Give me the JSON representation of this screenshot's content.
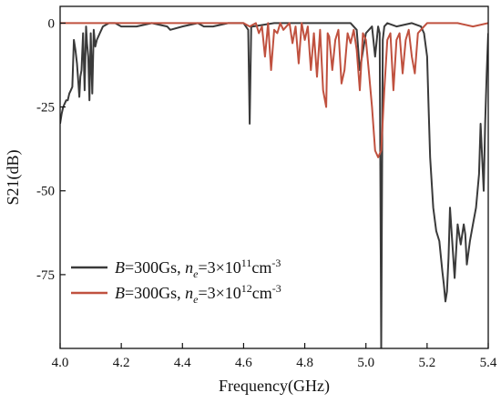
{
  "chart_data": {
    "type": "line",
    "xlabel": "Frequency(GHz)",
    "ylabel": "S21(dB)",
    "xlim": [
      4.0,
      5.4
    ],
    "ylim": [
      -97,
      5
    ],
    "xticks": [
      "4.0",
      "4.2",
      "4.4",
      "4.6",
      "4.8",
      "5.0",
      "5.2",
      "5.4"
    ],
    "xtick_values": [
      4.0,
      4.2,
      4.4,
      4.6,
      4.8,
      5.0,
      5.2,
      5.4
    ],
    "yticks": [
      "0",
      "-25",
      "-50",
      "-75"
    ],
    "ytick_values": [
      0,
      -25,
      -50,
      -75
    ],
    "grid": false,
    "legend_position": "bottom-left",
    "series": [
      {
        "name_parts": {
          "b_symbol": "B",
          "b_value": "=300Gs, ",
          "n_symbol": "n",
          "n_sub": "e",
          "n_value": "=3×10",
          "n_exp": "11",
          "n_unit": "cm",
          "n_unit_exp": "-3"
        },
        "color": "#3a3a3a",
        "x": [
          4.0,
          4.005,
          4.01,
          4.015,
          4.02,
          4.025,
          4.03,
          4.035,
          4.04,
          4.045,
          4.05,
          4.055,
          4.06,
          4.063,
          4.066,
          4.07,
          4.075,
          4.08,
          4.085,
          4.088,
          4.092,
          4.096,
          4.1,
          4.105,
          4.11,
          4.115,
          4.12,
          4.13,
          4.14,
          4.16,
          4.18,
          4.2,
          4.25,
          4.3,
          4.35,
          4.36,
          4.4,
          4.45,
          4.47,
          4.5,
          4.55,
          4.6,
          4.615,
          4.62,
          4.625,
          4.63,
          4.7,
          4.8,
          4.9,
          4.95,
          4.97,
          4.98,
          5.0,
          5.02,
          5.03,
          5.04,
          5.045,
          5.05,
          5.055,
          5.06,
          5.07,
          5.1,
          5.15,
          5.18,
          5.19,
          5.2,
          5.205,
          5.21,
          5.22,
          5.23,
          5.24,
          5.25,
          5.255,
          5.26,
          5.265,
          5.27,
          5.275,
          5.28,
          5.29,
          5.3,
          5.31,
          5.32,
          5.325,
          5.33,
          5.34,
          5.35,
          5.36,
          5.37,
          5.375,
          5.38,
          5.385,
          5.39,
          5.395,
          5.4
        ],
        "values": [
          -30,
          -27,
          -25,
          -24,
          -23,
          -23,
          -21,
          -20,
          -19,
          -5,
          -8,
          -12,
          -18,
          -22,
          -16,
          -14,
          -3,
          -20,
          -1,
          -6,
          -10,
          -23,
          -3,
          -21,
          -2,
          -7,
          -5,
          -3,
          -1,
          0,
          0,
          -1,
          -1,
          0,
          -1,
          -2,
          -1,
          0,
          -1,
          -1,
          0,
          0,
          -2,
          -30,
          -1,
          -1,
          0,
          0,
          0,
          0,
          -2,
          -14,
          -3,
          -1,
          -10,
          -1,
          -3,
          -97,
          -5,
          -1,
          0,
          -1,
          0,
          -1,
          -3,
          -10,
          -25,
          -40,
          -55,
          -62,
          -65,
          -74,
          -78,
          -83,
          -80,
          -70,
          -55,
          -62,
          -76,
          -60,
          -66,
          -60,
          -63,
          -72,
          -65,
          -60,
          -55,
          -45,
          -30,
          -40,
          -50,
          -30,
          -15,
          -3
        ]
      },
      {
        "name_parts": {
          "b_symbol": "B",
          "b_value": "=300Gs, ",
          "n_symbol": "n",
          "n_sub": "e",
          "n_value": "=3×10",
          "n_exp": "12",
          "n_unit": "cm",
          "n_unit_exp": "-3"
        },
        "color": "#c0513f",
        "x": [
          4.0,
          4.1,
          4.2,
          4.3,
          4.4,
          4.5,
          4.6,
          4.62,
          4.64,
          4.65,
          4.66,
          4.67,
          4.68,
          4.69,
          4.7,
          4.71,
          4.72,
          4.73,
          4.74,
          4.75,
          4.76,
          4.77,
          4.78,
          4.79,
          4.8,
          4.81,
          4.82,
          4.83,
          4.84,
          4.85,
          4.86,
          4.87,
          4.875,
          4.88,
          4.89,
          4.9,
          4.91,
          4.92,
          4.93,
          4.94,
          4.95,
          4.96,
          4.97,
          4.98,
          4.99,
          5.0,
          5.01,
          5.02,
          5.03,
          5.04,
          5.05,
          5.06,
          5.07,
          5.08,
          5.09,
          5.1,
          5.11,
          5.12,
          5.13,
          5.14,
          5.15,
          5.16,
          5.17,
          5.18,
          5.19,
          5.2,
          5.25,
          5.3,
          5.35,
          5.4
        ],
        "values": [
          0,
          0,
          0,
          0,
          0,
          0,
          0,
          -1,
          0,
          -3,
          -1,
          -10,
          0,
          -14,
          -2,
          -3,
          0,
          -2,
          -1,
          0,
          -6,
          -1,
          -12,
          0,
          -5,
          -1,
          -14,
          -3,
          -16,
          -2,
          -20,
          -25,
          -3,
          -4,
          -14,
          -5,
          -2,
          -18,
          -14,
          -3,
          -6,
          -2,
          -8,
          -20,
          -3,
          -5,
          -15,
          -25,
          -38,
          -40,
          -38,
          -20,
          -5,
          -3,
          -20,
          -5,
          -3,
          -15,
          -5,
          -2,
          -10,
          -15,
          -3,
          -2,
          -1,
          0,
          0,
          0,
          -1,
          0
        ]
      }
    ]
  }
}
